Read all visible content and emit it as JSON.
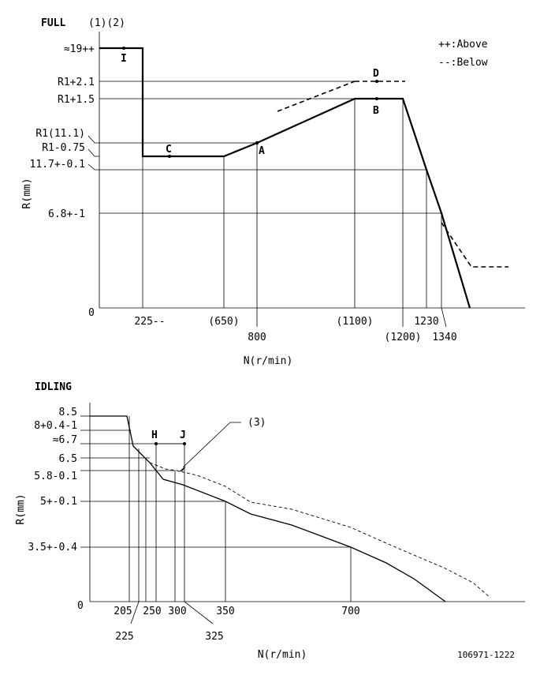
{
  "full": {
    "title": "FULL",
    "notes": "(1)(2)",
    "legend_above": "++:Above",
    "legend_below": "--:Below",
    "ylabel": "R(mm)",
    "xlabel": "N(r/min)",
    "zero": "0",
    "y_labels": {
      "r19": "≈19++",
      "r1p21": "R1+2.1",
      "r1p15": "R1+1.5",
      "r1": "R1(11.1)",
      "r1m075": "R1-0.75",
      "r117": "11.7+-0.1",
      "r68": "6.8+-1"
    },
    "x_labels": {
      "n225": "225--",
      "n650": "(650)",
      "n800": "800",
      "n1100": "(1100)",
      "n1200": "(1200)",
      "n1230": "1230",
      "n1340": "1340"
    },
    "points": {
      "I": "I",
      "A": "A",
      "B": "B",
      "C": "C",
      "D": "D"
    }
  },
  "idling": {
    "title": "IDLING",
    "ylabel": "R(mm)",
    "xlabel": "N(r/min)",
    "zero": "0",
    "note": "(3)",
    "y_labels": {
      "r85": "8.5",
      "r8": "8+0.4-1",
      "r67": "≈6.7",
      "r65": "6.5",
      "r58": "5.8-0.1",
      "r5": "5+-0.1",
      "r35": "3.5+-0.4"
    },
    "x_labels": {
      "n205": "205",
      "n225": "225",
      "n250": "250",
      "n300": "300",
      "n325": "325",
      "n350": "350",
      "n700": "700"
    },
    "points": {
      "H": "H",
      "J": "J"
    }
  },
  "footer_code": "106971-1222"
}
